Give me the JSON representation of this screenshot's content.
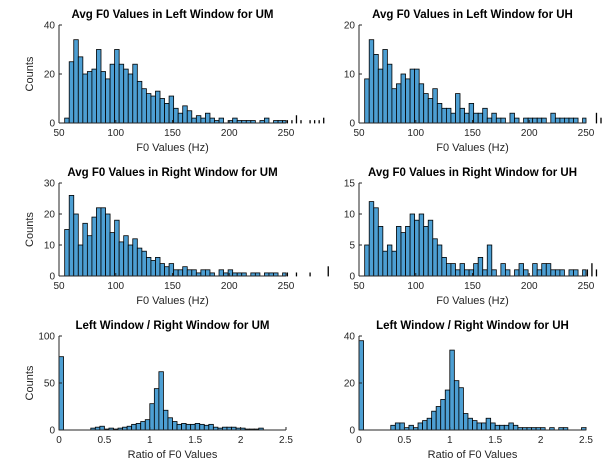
{
  "chart_data": [
    {
      "type": "bar",
      "title": "Avg F0 Values in Left Window for UM",
      "xlabel": "F0 Values (Hz)",
      "ylabel": "Counts",
      "xlim": [
        50,
        250
      ],
      "ylim": [
        0,
        40
      ],
      "xticks": [
        50,
        100,
        150,
        200,
        250
      ],
      "yticks": [
        0,
        20,
        40
      ],
      "bins": {
        "start": 55,
        "width": 4
      },
      "values": [
        2,
        25,
        34,
        27,
        20,
        21,
        22,
        30,
        21,
        18,
        24,
        30,
        24,
        22,
        20,
        24,
        17,
        14,
        12,
        11,
        13,
        10,
        8,
        11,
        6,
        4,
        7,
        5,
        2,
        3,
        2,
        4,
        2,
        1,
        2,
        0,
        1,
        2,
        1,
        1,
        1,
        1,
        0,
        1,
        2,
        0,
        1,
        1,
        1,
        1,
        1,
        3,
        1,
        0,
        1,
        1,
        1,
        2
      ],
      "color": "#4d9fd3"
    },
    {
      "type": "bar",
      "title": "Avg F0 Values in Left Window for UH",
      "xlabel": "F0 Values (Hz)",
      "ylabel": "",
      "xlim": [
        50,
        250
      ],
      "ylim": [
        0,
        20
      ],
      "xticks": [
        50,
        100,
        150,
        200,
        250
      ],
      "yticks": [
        0,
        10,
        20
      ],
      "bins": {
        "start": 55,
        "width": 4
      },
      "values": [
        9,
        17,
        14,
        11,
        15,
        12,
        7,
        8,
        10,
        9,
        11,
        11,
        8,
        6,
        5,
        7,
        4,
        3,
        3,
        2,
        6,
        3,
        2,
        4,
        2,
        2,
        3,
        1,
        2,
        1,
        1,
        0,
        2,
        1,
        0,
        1,
        1,
        1,
        1,
        1,
        0,
        2,
        1,
        1,
        1,
        1,
        1,
        0,
        1,
        0,
        0,
        2,
        1,
        1,
        0,
        1,
        1,
        2,
        1,
        1,
        3
      ],
      "color": "#4d9fd3"
    },
    {
      "type": "bar",
      "title": "Avg F0 Values in Right Window for UM",
      "xlabel": "F0 Values (Hz)",
      "ylabel": "Counts",
      "xlim": [
        50,
        250
      ],
      "ylim": [
        0,
        30
      ],
      "xticks": [
        50,
        100,
        150,
        200,
        250
      ],
      "yticks": [
        0,
        10,
        20,
        30
      ],
      "bins": {
        "start": 55,
        "width": 4
      },
      "values": [
        15,
        26,
        20,
        10,
        17,
        13,
        19,
        22,
        22,
        20,
        14,
        18,
        11,
        13,
        10,
        12,
        9,
        8,
        6,
        5,
        6,
        4,
        3,
        4,
        2,
        2,
        3,
        2,
        2,
        1,
        2,
        2,
        1,
        0,
        2,
        1,
        2,
        1,
        1,
        1,
        0,
        1,
        1,
        0,
        1,
        1,
        1,
        0,
        1,
        1,
        0,
        1,
        0,
        0,
        1,
        0,
        0,
        0,
        3
      ],
      "color": "#4d9fd3"
    },
    {
      "type": "bar",
      "title": "Avg F0 Values in Right Window for UH",
      "xlabel": "F0 Values (Hz)",
      "ylabel": "",
      "xlim": [
        50,
        250
      ],
      "ylim": [
        0,
        15
      ],
      "xticks": [
        50,
        100,
        150,
        200,
        250
      ],
      "yticks": [
        0,
        5,
        10,
        15
      ],
      "bins": {
        "start": 55,
        "width": 4
      },
      "values": [
        5,
        12,
        11,
        8,
        4,
        5,
        4,
        8,
        7,
        8,
        10,
        9,
        10,
        8,
        9,
        6,
        5,
        3,
        2,
        2,
        1,
        2,
        1,
        1,
        2,
        3,
        1,
        5,
        1,
        0,
        2,
        1,
        0,
        1,
        2,
        1,
        0,
        2,
        1,
        2,
        2,
        1,
        1,
        1,
        0,
        1,
        1,
        0,
        1,
        1,
        2,
        1,
        0,
        1,
        1,
        0,
        2,
        1,
        1,
        2,
        1,
        3
      ],
      "color": "#4d9fd3"
    },
    {
      "type": "bar",
      "title": "Left Window / Right Window for UM",
      "xlabel": "Ratio of F0 Values",
      "ylabel": "Counts",
      "xlim": [
        0,
        2.5
      ],
      "ylim": [
        0,
        100
      ],
      "xticks": [
        0,
        0.5,
        1,
        1.5,
        2,
        2.5
      ],
      "yticks": [
        0,
        50,
        100
      ],
      "bins": {
        "start": 0,
        "width": 0.05
      },
      "values": [
        78,
        0,
        0,
        0,
        0,
        0,
        0,
        2,
        3,
        4,
        1,
        2,
        1,
        2,
        3,
        4,
        6,
        7,
        9,
        11,
        28,
        44,
        62,
        21,
        13,
        9,
        6,
        7,
        6,
        6,
        7,
        6,
        5,
        6,
        3,
        2,
        3,
        3,
        3,
        2,
        2,
        1,
        1,
        1,
        2,
        0,
        0,
        0,
        0,
        0
      ],
      "color": "#4d9fd3"
    },
    {
      "type": "bar",
      "title": "Left Window / Right Window for UH",
      "xlabel": "Ratio of F0 Values",
      "ylabel": "",
      "xlim": [
        0,
        2.5
      ],
      "ylim": [
        0,
        40
      ],
      "xticks": [
        0,
        0.5,
        1,
        1.5,
        2,
        2.5
      ],
      "yticks": [
        0,
        20,
        40
      ],
      "bins": {
        "start": 0,
        "width": 0.05
      },
      "values": [
        38,
        0,
        0,
        0,
        0,
        0,
        0,
        2,
        3,
        3,
        1,
        2,
        1,
        3,
        4,
        5,
        8,
        10,
        13,
        17,
        34,
        21,
        18,
        7,
        5,
        4,
        3,
        3,
        5,
        3,
        2,
        2,
        2,
        3,
        2,
        1,
        1,
        1,
        1,
        1,
        1,
        0,
        1,
        0,
        1,
        1,
        0,
        0,
        0,
        1
      ],
      "color": "#4d9fd3"
    }
  ]
}
